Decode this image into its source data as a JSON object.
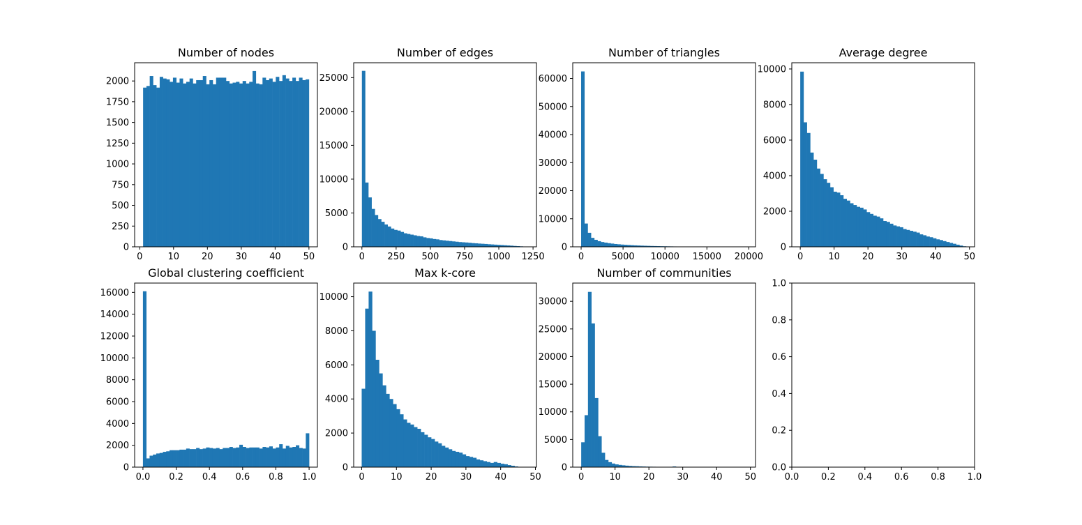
{
  "colors": {
    "bar": "#1f77b4",
    "axis": "#000000",
    "background": "#ffffff"
  },
  "chart_data": [
    {
      "type": "bar",
      "title": "Number of nodes",
      "xlim": [
        -1.5,
        52.5
      ],
      "ylim": [
        0,
        2220
      ],
      "x_ticks": [
        0,
        10,
        20,
        30,
        40,
        50
      ],
      "y_ticks": [
        0,
        250,
        500,
        750,
        1000,
        1250,
        1500,
        1750,
        2000
      ],
      "bin_edges": [
        1,
        50
      ],
      "values": [
        1920,
        1940,
        2060,
        1950,
        1920,
        2050,
        2030,
        2020,
        1990,
        2040,
        1980,
        2030,
        1970,
        1990,
        2030,
        1970,
        2010,
        2010,
        2060,
        1960,
        2010,
        1960,
        2040,
        2040,
        2040,
        2000,
        1970,
        1980,
        1990,
        1970,
        2000,
        1970,
        1990,
        2120,
        1970,
        1960,
        2040,
        2010,
        2030,
        1990,
        2050,
        2000,
        2070,
        2030,
        2000,
        2040,
        2000,
        2040,
        2010,
        2020
      ]
    },
    {
      "type": "bar",
      "title": "Number of edges",
      "xlim": [
        -60,
        1275
      ],
      "ylim": [
        0,
        27200
      ],
      "x_ticks": [
        0,
        250,
        500,
        750,
        1000,
        1250
      ],
      "y_ticks": [
        0,
        5000,
        10000,
        15000,
        20000,
        25000
      ],
      "bin_edges": [
        0,
        1176
      ],
      "values": [
        26000,
        9500,
        7300,
        5600,
        4700,
        4100,
        3700,
        3300,
        3000,
        2700,
        2500,
        2400,
        2200,
        2000,
        1900,
        1800,
        1700,
        1600,
        1550,
        1400,
        1300,
        1250,
        1150,
        1100,
        1000,
        950,
        900,
        850,
        800,
        750,
        700,
        670,
        640,
        600,
        550,
        520,
        480,
        450,
        420,
        380,
        350,
        320,
        290,
        260,
        230,
        200,
        170,
        130,
        100,
        70
      ]
    },
    {
      "type": "bar",
      "title": "Number of triangles",
      "xlim": [
        -1000,
        20800
      ],
      "ylim": [
        0,
        65600
      ],
      "x_ticks": [
        0,
        5000,
        10000,
        15000,
        20000
      ],
      "y_ticks": [
        0,
        10000,
        20000,
        30000,
        40000,
        50000,
        60000
      ],
      "bin_edges": [
        0,
        19600
      ],
      "values": [
        62500,
        8300,
        5000,
        3200,
        2500,
        2000,
        1700,
        1500,
        1300,
        1150,
        1000,
        900,
        800,
        720,
        650,
        580,
        520,
        470,
        420,
        380,
        340,
        300,
        270,
        240,
        210,
        190,
        170,
        150,
        130,
        120,
        100,
        90,
        80,
        70,
        60,
        50,
        45,
        40,
        35,
        30,
        25,
        20,
        18,
        15,
        12,
        10,
        8,
        6,
        5,
        4
      ]
    },
    {
      "type": "bar",
      "title": "Average degree",
      "xlim": [
        -2.5,
        51.5
      ],
      "ylim": [
        0,
        10350
      ],
      "x_ticks": [
        0,
        10,
        20,
        30,
        40,
        50
      ],
      "y_ticks": [
        0,
        2000,
        4000,
        6000,
        8000,
        10000
      ],
      "bin_edges": [
        0,
        49
      ],
      "values": [
        9850,
        7000,
        6400,
        5300,
        4900,
        4400,
        4100,
        3800,
        3600,
        3350,
        3100,
        3050,
        2900,
        2700,
        2600,
        2450,
        2350,
        2250,
        2200,
        2100,
        1950,
        1850,
        1750,
        1700,
        1600,
        1450,
        1400,
        1300,
        1200,
        1150,
        1100,
        1000,
        950,
        900,
        850,
        800,
        700,
        650,
        580,
        540,
        480,
        420,
        380,
        320,
        270,
        220,
        170,
        120,
        70,
        30
      ]
    },
    {
      "type": "bar",
      "title": "Global clustering coefficient",
      "xlim": [
        -0.05,
        1.05
      ],
      "ylim": [
        0,
        16850
      ],
      "x_ticks": [
        0.0,
        0.2,
        0.4,
        0.6,
        0.8,
        1.0
      ],
      "x_tick_labels": [
        "0.0",
        "0.2",
        "0.4",
        "0.6",
        "0.8",
        "1.0"
      ],
      "y_ticks": [
        0,
        2000,
        4000,
        6000,
        8000,
        10000,
        12000,
        14000,
        16000
      ],
      "bin_edges": [
        0,
        1
      ],
      "values": [
        16100,
        800,
        1050,
        1150,
        1250,
        1300,
        1400,
        1450,
        1550,
        1550,
        1550,
        1600,
        1600,
        1700,
        1650,
        1650,
        1750,
        1650,
        1700,
        1800,
        1750,
        1700,
        1750,
        1650,
        1750,
        1750,
        1850,
        1750,
        1800,
        2050,
        1850,
        1750,
        1800,
        1800,
        1800,
        1700,
        1850,
        1800,
        1900,
        1700,
        1800,
        2100,
        1700,
        1950,
        1800,
        1850,
        2000,
        1750,
        1700,
        3100
      ]
    },
    {
      "type": "bar",
      "title": "Max k-core",
      "xlim": [
        -2.3,
        50.3
      ],
      "ylim": [
        0,
        10800
      ],
      "x_ticks": [
        0,
        10,
        20,
        30,
        40,
        50
      ],
      "y_ticks": [
        0,
        2000,
        4000,
        6000,
        8000,
        10000
      ],
      "bin_edges": [
        0,
        46
      ],
      "values": [
        4600,
        9300,
        10300,
        8000,
        6300,
        5500,
        4800,
        4300,
        4000,
        3700,
        3400,
        3100,
        2800,
        2600,
        2500,
        2350,
        2250,
        2050,
        1900,
        1750,
        1650,
        1500,
        1400,
        1250,
        1150,
        1050,
        950,
        900,
        850,
        750,
        650,
        600,
        550,
        450,
        400,
        350,
        300,
        250,
        300,
        250,
        200,
        170,
        120,
        80,
        40,
        20
      ]
    },
    {
      "type": "bar",
      "title": "Number of communities",
      "xlim": [
        -2.5,
        51.5
      ],
      "ylim": [
        0,
        33300
      ],
      "x_ticks": [
        0,
        10,
        20,
        30,
        40,
        50
      ],
      "y_ticks": [
        0,
        5000,
        10000,
        15000,
        20000,
        25000,
        30000
      ],
      "bin_edges": [
        0,
        49
      ],
      "values": [
        4500,
        9400,
        31700,
        26000,
        12500,
        5600,
        2600,
        1300,
        900,
        650,
        500,
        400,
        330,
        270,
        220,
        180,
        160,
        130,
        110,
        90,
        80,
        70,
        60,
        50,
        40,
        35,
        30,
        120,
        25,
        20,
        15,
        12,
        10,
        8,
        6,
        5,
        4,
        3,
        3,
        2,
        2,
        1,
        1,
        1,
        1,
        1,
        1,
        1,
        1
      ]
    },
    {
      "type": "bar",
      "title": "",
      "xlim": [
        0,
        1
      ],
      "ylim": [
        0,
        1
      ],
      "x_ticks": [
        0.0,
        0.2,
        0.4,
        0.6,
        0.8,
        1.0
      ],
      "x_tick_labels": [
        "0.0",
        "0.2",
        "0.4",
        "0.6",
        "0.8",
        "1.0"
      ],
      "y_ticks": [
        0.0,
        0.2,
        0.4,
        0.6,
        0.8,
        1.0
      ],
      "y_tick_labels": [
        "0.0",
        "0.2",
        "0.4",
        "0.6",
        "0.8",
        "1.0"
      ],
      "values": []
    }
  ]
}
